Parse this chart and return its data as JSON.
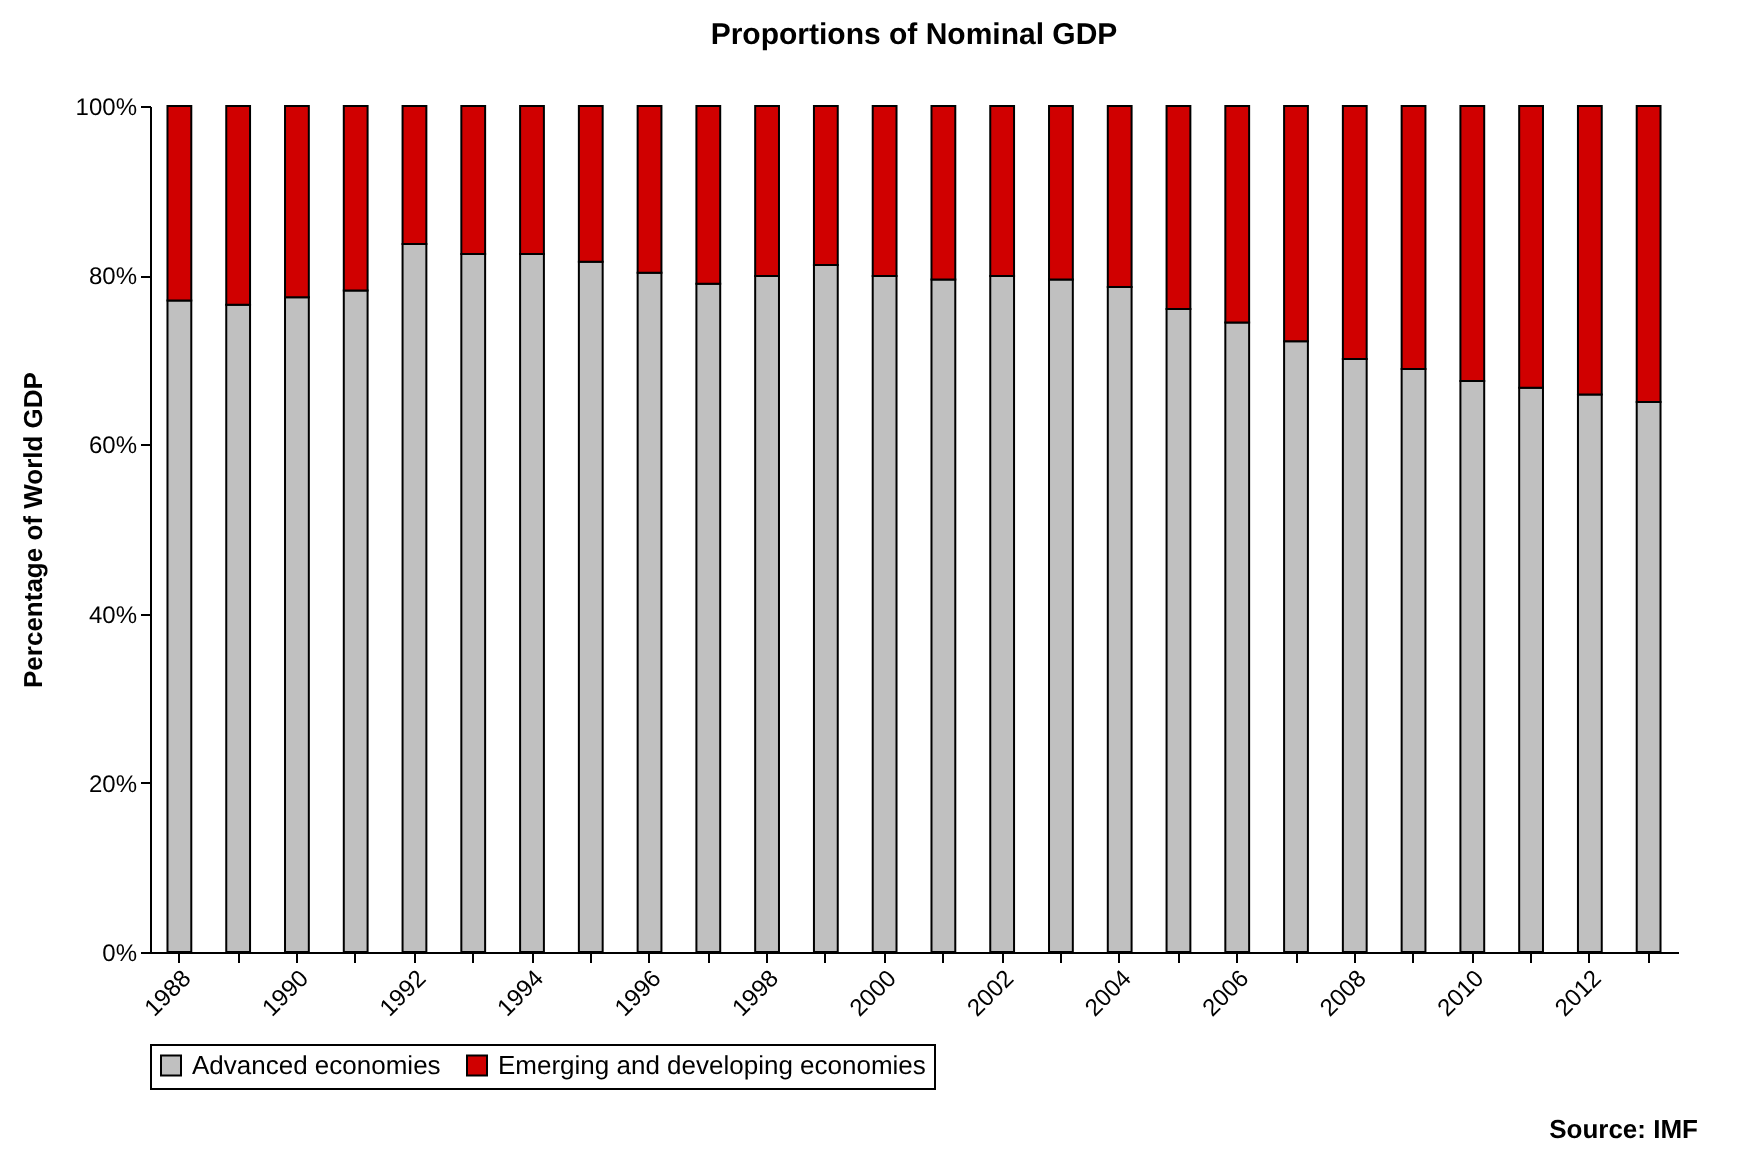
{
  "chart_data": {
    "type": "bar",
    "title": "Proportions of Nominal GDP",
    "ylabel": "Percentage of World GDP",
    "categories": [
      "1988",
      null,
      "1990",
      null,
      "1992",
      null,
      "1994",
      null,
      "1996",
      null,
      "1998",
      null,
      "2000",
      null,
      "2002",
      null,
      "2004",
      null,
      "2006",
      null,
      "2008",
      null,
      "2010",
      null,
      "2012",
      null
    ],
    "series": [
      {
        "name": "Advanced economies",
        "color": "#c0c0c0",
        "values": [
          77.0,
          76.5,
          77.4,
          78.2,
          83.7,
          82.5,
          82.5,
          81.6,
          80.3,
          79.0,
          79.9,
          81.2,
          79.9,
          79.5,
          79.9,
          79.5,
          78.6,
          76.0,
          74.4,
          72.2,
          70.1,
          68.9,
          67.5,
          66.7,
          65.9,
          65.0
        ]
      },
      {
        "name": "Emerging and developing economies",
        "color": "#d00000",
        "values": [
          23.0,
          23.5,
          22.6,
          21.8,
          16.3,
          17.5,
          17.5,
          18.4,
          19.7,
          21.0,
          20.1,
          18.8,
          20.1,
          20.5,
          20.1,
          20.5,
          21.4,
          24.0,
          25.6,
          27.8,
          29.9,
          31.1,
          32.5,
          33.3,
          34.1,
          35.0
        ]
      }
    ],
    "stacked": true,
    "ylim": [
      0,
      100
    ],
    "yticks": [
      {
        "value": 0,
        "label": "0%"
      },
      {
        "value": 20,
        "label": "20%"
      },
      {
        "value": 40,
        "label": "40%"
      },
      {
        "value": 60,
        "label": "60%"
      },
      {
        "value": 80,
        "label": "80%"
      },
      {
        "value": 100,
        "label": "100%"
      }
    ],
    "legend": "bottom",
    "grid": false,
    "annotations": [
      "Source: IMF"
    ]
  }
}
